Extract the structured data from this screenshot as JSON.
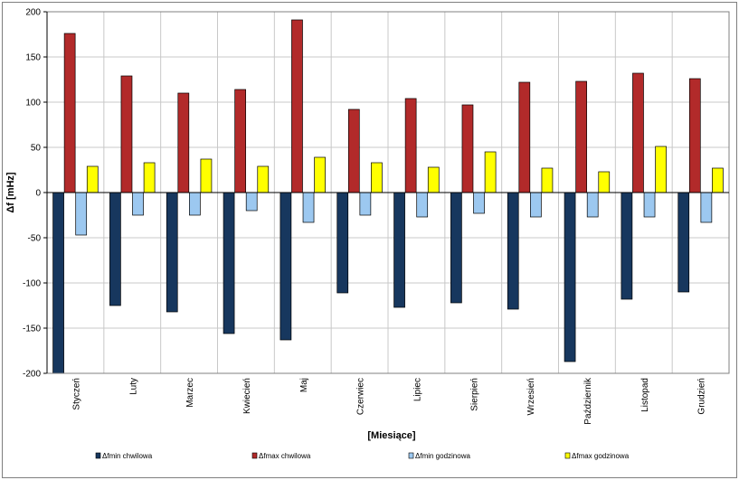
{
  "chart_data": {
    "type": "bar",
    "title": "",
    "xlabel": "[Miesiące]",
    "ylabel": "Δf [mHz]",
    "ylim": [
      -200,
      200
    ],
    "yticks": [
      200,
      150,
      100,
      50,
      0,
      -50,
      -100,
      -150,
      -200
    ],
    "grid": true,
    "legend_position": "bottom",
    "categories": [
      "Styczeń",
      "Luty",
      "Marzec",
      "Kwiecień",
      "Maj",
      "Czerwiec",
      "Lipiec",
      "Sierpień",
      "Wrzesień",
      "Październik",
      "Listopad",
      "Grudzień"
    ],
    "series": [
      {
        "name": "Δfmin chwilowa",
        "color": "#17375e",
        "values": [
          -200,
          -125,
          -132,
          -156,
          -163,
          -111,
          -127,
          -122,
          -129,
          -187,
          -118,
          -110
        ]
      },
      {
        "name": "Δfmax chwilowa",
        "color": "#b22a2a",
        "values": [
          176,
          129,
          110,
          114,
          191,
          92,
          104,
          97,
          122,
          123,
          132,
          126
        ]
      },
      {
        "name": "Δfmin godzinowa",
        "color": "#9cc8f0",
        "values": [
          -47,
          -25,
          -25,
          -20,
          -33,
          -25,
          -27,
          -23,
          -27,
          -27,
          -27,
          -33
        ]
      },
      {
        "name": "Δfmax godzinowa",
        "color": "#ffff00",
        "values": [
          29,
          33,
          37,
          29,
          39,
          33,
          28,
          45,
          27,
          23,
          51,
          27
        ]
      }
    ]
  }
}
